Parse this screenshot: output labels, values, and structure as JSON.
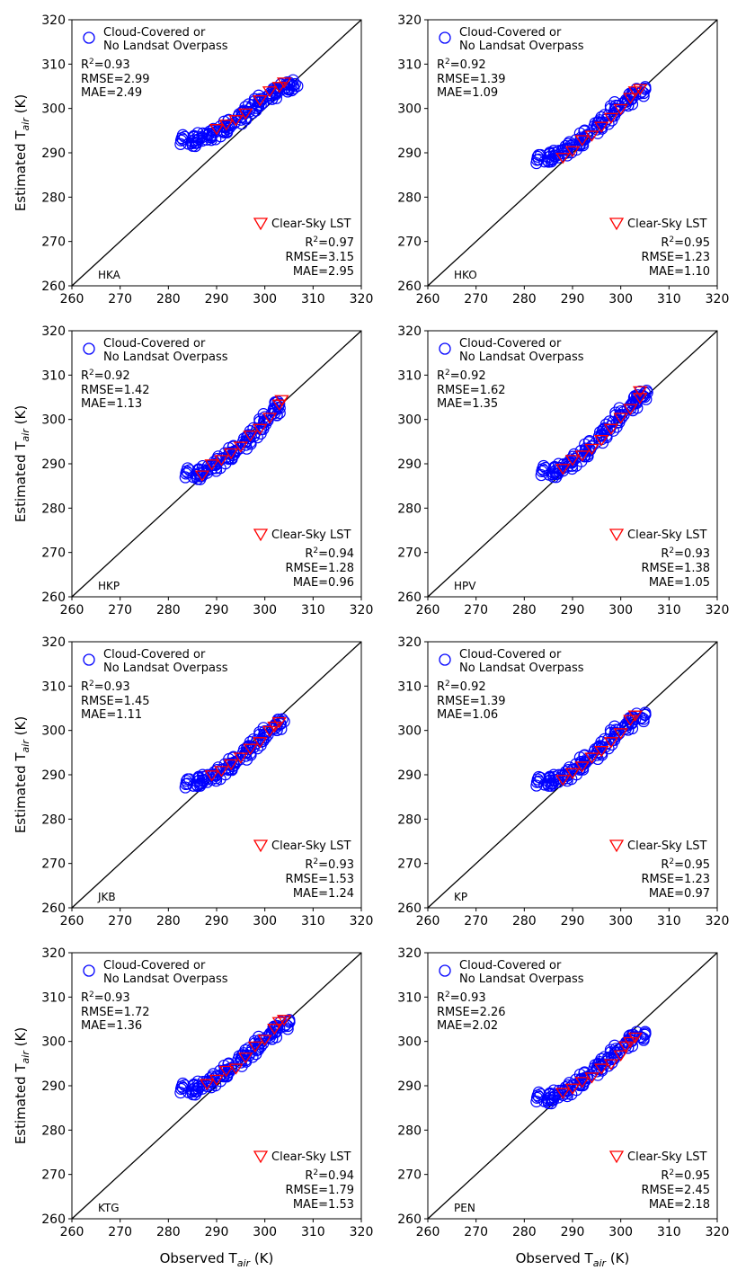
{
  "chart_data": {
    "type": "scatter",
    "layout": "4 rows x 2 columns grid of scatter panels",
    "shared": {
      "xlabel_main": "Observed T",
      "xlabel_sub": "air",
      "xlabel_unit": " (K)",
      "ylabel_main": "Estimated T",
      "ylabel_sub": "air",
      "ylabel_unit": " (K)",
      "xlim": [
        260,
        320
      ],
      "ylim": [
        260,
        320
      ],
      "ticks": [
        260,
        270,
        280,
        290,
        300,
        310,
        320
      ],
      "cloud_legend_line1": "Cloud-Covered or",
      "cloud_legend_line2": "No Landsat Overpass",
      "clear_legend": "Clear-Sky LST",
      "cloud_color": "#0000ff",
      "clear_color": "#ff0000",
      "reference_line": "1:1 line"
    },
    "panels": [
      {
        "station": "HKA",
        "cloud": {
          "r2": "0.93",
          "rmse": "2.99",
          "mae": "2.49",
          "x_range": [
            283,
            306
          ],
          "pts": [
            [
              283,
              293
            ],
            [
              285,
              292.5
            ],
            [
              287,
              293.5
            ],
            [
              289,
              294
            ],
            [
              291,
              295
            ],
            [
              293,
              296.5
            ],
            [
              295,
              298
            ],
            [
              297,
              300
            ],
            [
              299,
              301.5
            ],
            [
              301,
              303
            ],
            [
              303,
              304
            ],
            [
              305,
              305.5
            ],
            [
              306,
              304.5
            ]
          ]
        },
        "clear": {
          "r2": "0.97",
          "rmse": "3.15",
          "mae": "2.95",
          "pts": [
            [
              290,
              295.5
            ],
            [
              292,
              296.5
            ],
            [
              294,
              297.5
            ],
            [
              296,
              299
            ],
            [
              299,
              302
            ],
            [
              301,
              304
            ],
            [
              303,
              305
            ],
            [
              304,
              306
            ]
          ]
        }
      },
      {
        "station": "HKO",
        "cloud": {
          "r2": "0.92",
          "rmse": "1.39",
          "mae": "1.09",
          "pts": [
            [
              283,
              288.5
            ],
            [
              285,
              289
            ],
            [
              287,
              289.5
            ],
            [
              289,
              291
            ],
            [
              291,
              292
            ],
            [
              293,
              294
            ],
            [
              295,
              296
            ],
            [
              297,
              297.5
            ],
            [
              299,
              300
            ],
            [
              301,
              301.5
            ],
            [
              303,
              303
            ],
            [
              305,
              304.5
            ]
          ]
        },
        "clear": {
          "r2": "0.95",
          "rmse": "1.23",
          "mae": "1.10",
          "pts": [
            [
              288,
              289
            ],
            [
              290,
              290.5
            ],
            [
              292,
              293
            ],
            [
              294,
              294
            ],
            [
              296,
              296
            ],
            [
              298,
              298
            ],
            [
              300,
              300
            ],
            [
              302,
              302.5
            ],
            [
              303,
              304
            ],
            [
              304,
              304.5
            ]
          ]
        }
      },
      {
        "station": "HKP",
        "cloud": {
          "r2": "0.92",
          "rmse": "1.42",
          "mae": "1.13",
          "pts": [
            [
              284,
              288
            ],
            [
              286,
              287.5
            ],
            [
              288,
              288.5
            ],
            [
              290,
              290
            ],
            [
              292,
              291.5
            ],
            [
              294,
              293
            ],
            [
              296,
              295
            ],
            [
              298,
              297
            ],
            [
              300,
              299.5
            ],
            [
              302,
              302
            ],
            [
              303,
              303.5
            ]
          ]
        },
        "clear": {
          "r2": "0.94",
          "rmse": "1.28",
          "mae": "0.96",
          "pts": [
            [
              287,
              287.5
            ],
            [
              289,
              290
            ],
            [
              291,
              291
            ],
            [
              293,
              292.5
            ],
            [
              295,
              294
            ],
            [
              297,
              296.5
            ],
            [
              299,
              298
            ],
            [
              301,
              300.5
            ],
            [
              303,
              303.5
            ],
            [
              303.5,
              304.5
            ]
          ]
        }
      },
      {
        "station": "HPV",
        "cloud": {
          "r2": "0.92",
          "rmse": "1.62",
          "mae": "1.35",
          "pts": [
            [
              284,
              288.5
            ],
            [
              286,
              288
            ],
            [
              288,
              289
            ],
            [
              290,
              290.5
            ],
            [
              292,
              292
            ],
            [
              294,
              294
            ],
            [
              296,
              296.5
            ],
            [
              298,
              298.5
            ],
            [
              300,
              301
            ],
            [
              302,
              303
            ],
            [
              304,
              305
            ],
            [
              305,
              306
            ]
          ]
        },
        "clear": {
          "r2": "0.93",
          "rmse": "1.38",
          "mae": "1.05",
          "pts": [
            [
              288,
              289
            ],
            [
              290,
              291
            ],
            [
              292,
              292
            ],
            [
              294,
              293.5
            ],
            [
              296,
              295.5
            ],
            [
              298,
              298
            ],
            [
              300,
              300.5
            ],
            [
              302,
              302.5
            ],
            [
              304,
              305
            ],
            [
              304,
              306.5
            ]
          ]
        }
      },
      {
        "station": "JKB",
        "cloud": {
          "r2": "0.93",
          "rmse": "1.45",
          "mae": "1.11",
          "pts": [
            [
              284,
              288
            ],
            [
              286,
              288.5
            ],
            [
              288,
              289
            ],
            [
              290,
              290
            ],
            [
              292,
              291.5
            ],
            [
              294,
              293
            ],
            [
              296,
              295
            ],
            [
              298,
              297
            ],
            [
              300,
              299
            ],
            [
              302,
              301
            ],
            [
              304,
              302
            ]
          ]
        },
        "clear": {
          "r2": "0.93",
          "rmse": "1.53",
          "mae": "1.24",
          "pts": [
            [
              289,
              290
            ],
            [
              291,
              291
            ],
            [
              293,
              292.5
            ],
            [
              295,
              294
            ],
            [
              297,
              296
            ],
            [
              299,
              297.5
            ],
            [
              301,
              300
            ],
            [
              302,
              301
            ],
            [
              303,
              302
            ]
          ]
        }
      },
      {
        "station": "KP",
        "cloud": {
          "r2": "0.92",
          "rmse": "1.39",
          "mae": "1.06",
          "pts": [
            [
              283,
              288.5
            ],
            [
              285,
              288.5
            ],
            [
              287,
              289
            ],
            [
              289,
              290
            ],
            [
              291,
              291.5
            ],
            [
              293,
              293.5
            ],
            [
              295,
              295
            ],
            [
              297,
              297
            ],
            [
              299,
              299.5
            ],
            [
              301,
              301
            ],
            [
              303,
              302.5
            ],
            [
              305,
              303.5
            ]
          ]
        },
        "clear": {
          "r2": "0.95",
          "rmse": "1.23",
          "mae": "0.97",
          "pts": [
            [
              288,
              289
            ],
            [
              290,
              290.5
            ],
            [
              292,
              292
            ],
            [
              294,
              294
            ],
            [
              296,
              295.5
            ],
            [
              298,
              297.5
            ],
            [
              300,
              299.5
            ],
            [
              302,
              302.5
            ],
            [
              303,
              303.5
            ]
          ]
        }
      },
      {
        "station": "KTG",
        "cloud": {
          "r2": "0.93",
          "rmse": "1.72",
          "mae": "1.36",
          "pts": [
            [
              283,
              289.5
            ],
            [
              285,
              289
            ],
            [
              287,
              290
            ],
            [
              289,
              291
            ],
            [
              291,
              292.5
            ],
            [
              293,
              294
            ],
            [
              295,
              296
            ],
            [
              297,
              297.5
            ],
            [
              299,
              299.5
            ],
            [
              301,
              301.5
            ],
            [
              303,
              303
            ],
            [
              305,
              304.5
            ]
          ]
        },
        "clear": {
          "r2": "0.94",
          "rmse": "1.79",
          "mae": "1.53",
          "pts": [
            [
              288,
              290.5
            ],
            [
              290,
              291.5
            ],
            [
              292,
              293.5
            ],
            [
              294,
              294
            ],
            [
              296,
              296.5
            ],
            [
              298,
              299
            ],
            [
              300,
              300.5
            ],
            [
              302,
              303
            ],
            [
              303,
              304.5
            ],
            [
              304,
              305
            ]
          ]
        }
      },
      {
        "station": "PEN",
        "cloud": {
          "r2": "0.93",
          "rmse": "2.26",
          "mae": "2.02",
          "pts": [
            [
              283,
              287.5
            ],
            [
              285,
              287
            ],
            [
              287,
              288
            ],
            [
              289,
              289
            ],
            [
              291,
              290.5
            ],
            [
              293,
              292
            ],
            [
              295,
              294
            ],
            [
              297,
              295.5
            ],
            [
              299,
              297.5
            ],
            [
              301,
              299.5
            ],
            [
              303,
              301
            ],
            [
              305,
              301.5
            ]
          ]
        },
        "clear": {
          "r2": "0.95",
          "rmse": "2.45",
          "mae": "2.18",
          "pts": [
            [
              288,
              288.5
            ],
            [
              290,
              289.5
            ],
            [
              292,
              291
            ],
            [
              294,
              292
            ],
            [
              296,
              294
            ],
            [
              298,
              295
            ],
            [
              300,
              297
            ],
            [
              301,
              299
            ],
            [
              302,
              300
            ],
            [
              303,
              301
            ]
          ]
        }
      }
    ]
  }
}
